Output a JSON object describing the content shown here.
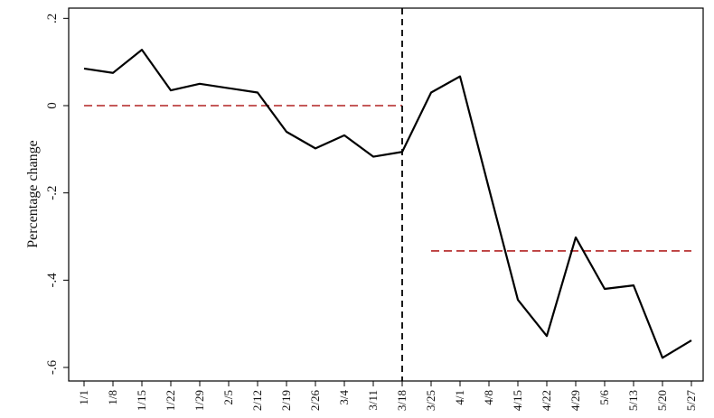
{
  "chart_data": {
    "type": "line",
    "ylabel": "Percentage change",
    "xlabel": "",
    "categories": [
      "1/1",
      "1/8",
      "1/15",
      "1/22",
      "1/29",
      "2/5",
      "2/12",
      "2/19",
      "2/26",
      "3/4",
      "3/11",
      "3/18",
      "3/25",
      "4/1",
      "4/8",
      "4/15",
      "4/22",
      "4/29",
      "5/6",
      "5/13",
      "5/20",
      "5/27"
    ],
    "y_ticks": [
      0.2,
      0,
      -0.2,
      -0.4,
      -0.6
    ],
    "y_tick_labels": [
      ".2",
      "0",
      "-.2",
      "-.4",
      "-.6"
    ],
    "ylim": [
      -0.63,
      0.22
    ],
    "series": [
      {
        "values": [
          0.085,
          0.075,
          0.128,
          0.035,
          0.05,
          0.04,
          0.03,
          -0.06,
          -0.098,
          -0.068,
          -0.117,
          -0.106,
          0.03,
          0.067,
          -0.19,
          -0.445,
          -0.528,
          -0.302,
          -0.42,
          -0.412,
          -0.578,
          -0.538
        ],
        "color": "#000000"
      }
    ],
    "reference_lines": [
      {
        "type": "horizontal",
        "value": 0.0,
        "from": "1/1",
        "to": "3/18",
        "color": "#b22222",
        "style": "dashed"
      },
      {
        "type": "horizontal",
        "value": -0.333,
        "from": "3/25",
        "to": "5/27",
        "color": "#b22222",
        "style": "dashed"
      },
      {
        "type": "vertical",
        "value": "3/18",
        "color": "#000000",
        "style": "dashed"
      }
    ],
    "grid": false,
    "legend": "none"
  }
}
